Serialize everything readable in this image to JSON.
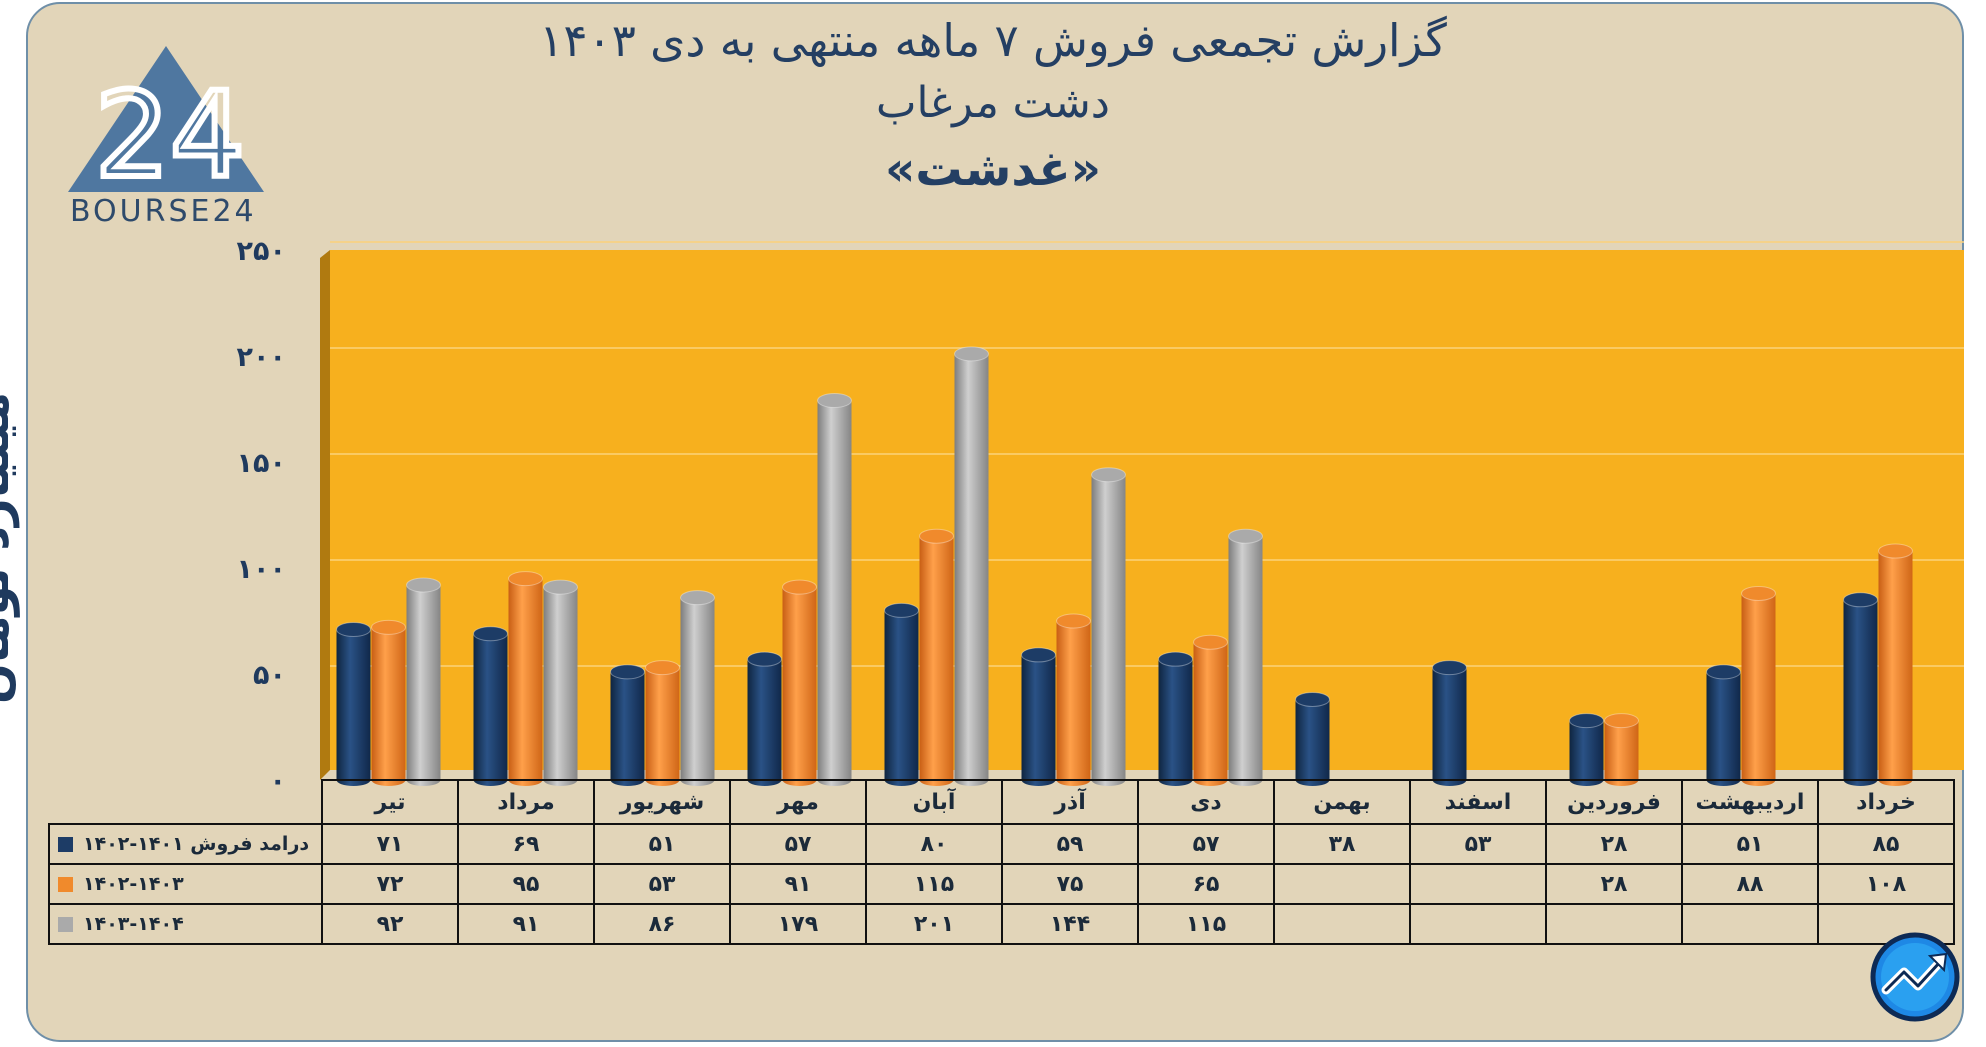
{
  "title": {
    "line1": "گزارش تجمعی فروش ۷ ماهه منتهی به دی ۱۴۰۳",
    "line2": "دشت مرغاب",
    "line3": "«غدشت»"
  },
  "logo": {
    "text": "BOURSE24",
    "mark": "24"
  },
  "chart_data": {
    "type": "bar",
    "title": "گزارش تجمعی فروش ۷ ماهه منتهی به دی ۱۴۰۳",
    "ylabel": "میلیارد تومان",
    "ylim": [
      0,
      250
    ],
    "y_ticks": [
      {
        "value": 0,
        "label": "۰"
      },
      {
        "value": 50,
        "label": "۵۰"
      },
      {
        "value": 100,
        "label": "۱۰۰"
      },
      {
        "value": 150,
        "label": "۱۵۰"
      },
      {
        "value": 200,
        "label": "۲۰۰"
      },
      {
        "value": 250,
        "label": "۲۵۰"
      }
    ],
    "grid": true,
    "categories": [
      "تیر",
      "مرداد",
      "شهریور",
      "مهر",
      "آبان",
      "آذر",
      "دی",
      "بهمن",
      "اسفند",
      "فروردین",
      "اردیبهشت",
      "خرداد"
    ],
    "series": [
      {
        "name": "درامد فروش ۱۴۰۱-۱۴۰۲",
        "color": "#1d3c66",
        "values": [
          71,
          69,
          51,
          57,
          80,
          59,
          57,
          38,
          53,
          28,
          51,
          85
        ],
        "labels": [
          "۷۱",
          "۶۹",
          "۵۱",
          "۵۷",
          "۸۰",
          "۵۹",
          "۵۷",
          "۳۸",
          "۵۳",
          "۲۸",
          "۵۱",
          "۸۵"
        ]
      },
      {
        "name": "۱۴۰۲-۱۴۰۳",
        "color": "#f08a2c",
        "values": [
          72,
          95,
          53,
          91,
          115,
          75,
          65,
          null,
          null,
          28,
          88,
          108
        ],
        "labels": [
          "۷۲",
          "۹۵",
          "۵۳",
          "۹۱",
          "۱۱۵",
          "۷۵",
          "۶۵",
          "",
          "",
          "۲۸",
          "۸۸",
          "۱۰۸"
        ]
      },
      {
        "name": "۱۴۰۳-۱۴۰۴",
        "color": "#aaaaaa",
        "values": [
          92,
          91,
          86,
          179,
          201,
          144,
          115,
          null,
          null,
          null,
          null,
          null
        ],
        "labels": [
          "۹۲",
          "۹۱",
          "۸۶",
          "۱۷۹",
          "۲۰۱",
          "۱۴۴",
          "۱۱۵",
          "",
          "",
          "",
          "",
          ""
        ]
      }
    ]
  },
  "colors": {
    "background": "#e2d5b9",
    "plot": "#f7b01e",
    "title": "#243f63"
  },
  "icons": {
    "brand": "bourse24-logo-icon",
    "corner": "trend-arrow-icon"
  }
}
